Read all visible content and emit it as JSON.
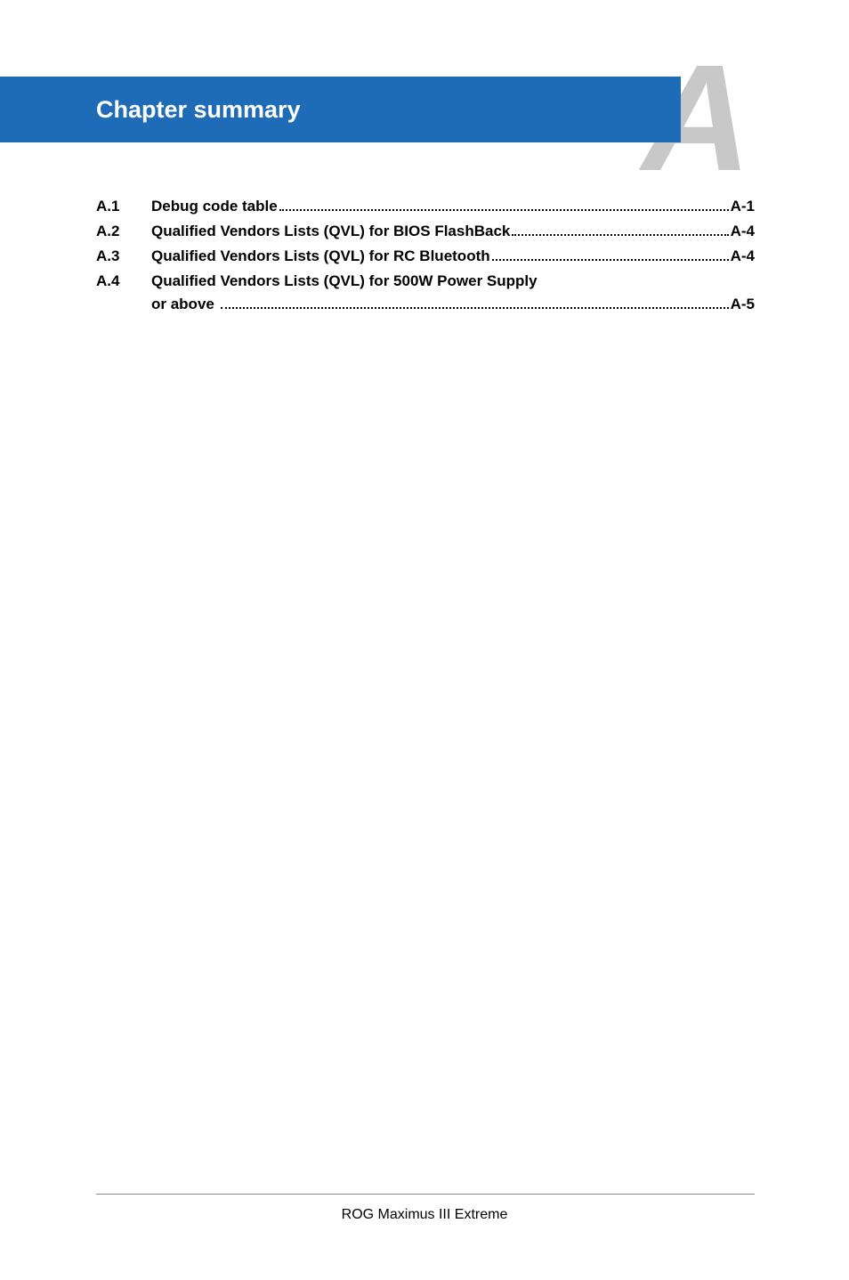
{
  "header": {
    "title": "Chapter summary",
    "big_letter": "A"
  },
  "toc": {
    "items": [
      {
        "num": "A.1",
        "text": "Debug code table",
        "page": "A-1",
        "multiline": false
      },
      {
        "num": "A.2",
        "text": "Qualified Vendors Lists (QVL) for BIOS FlashBack",
        "page": "A-4",
        "multiline": false
      },
      {
        "num": "A.3",
        "text": "Qualified Vendors Lists (QVL) for RC Bluetooth",
        "page": "A-4",
        "multiline": false
      },
      {
        "num": "A.4",
        "text_line1": "Qualified Vendors Lists (QVL) for 500W Power Supply",
        "text_line2": "or above",
        "page": "A-5",
        "multiline": true
      }
    ]
  },
  "footer": {
    "text": "ROG Maximus III Extreme"
  },
  "colors": {
    "header_bg": "#1e6bb8",
    "header_text": "#ffffff",
    "big_letter": "#c8c8c8",
    "body_text": "#000000",
    "page_bg": "#ffffff",
    "footer_line": "#888888"
  }
}
